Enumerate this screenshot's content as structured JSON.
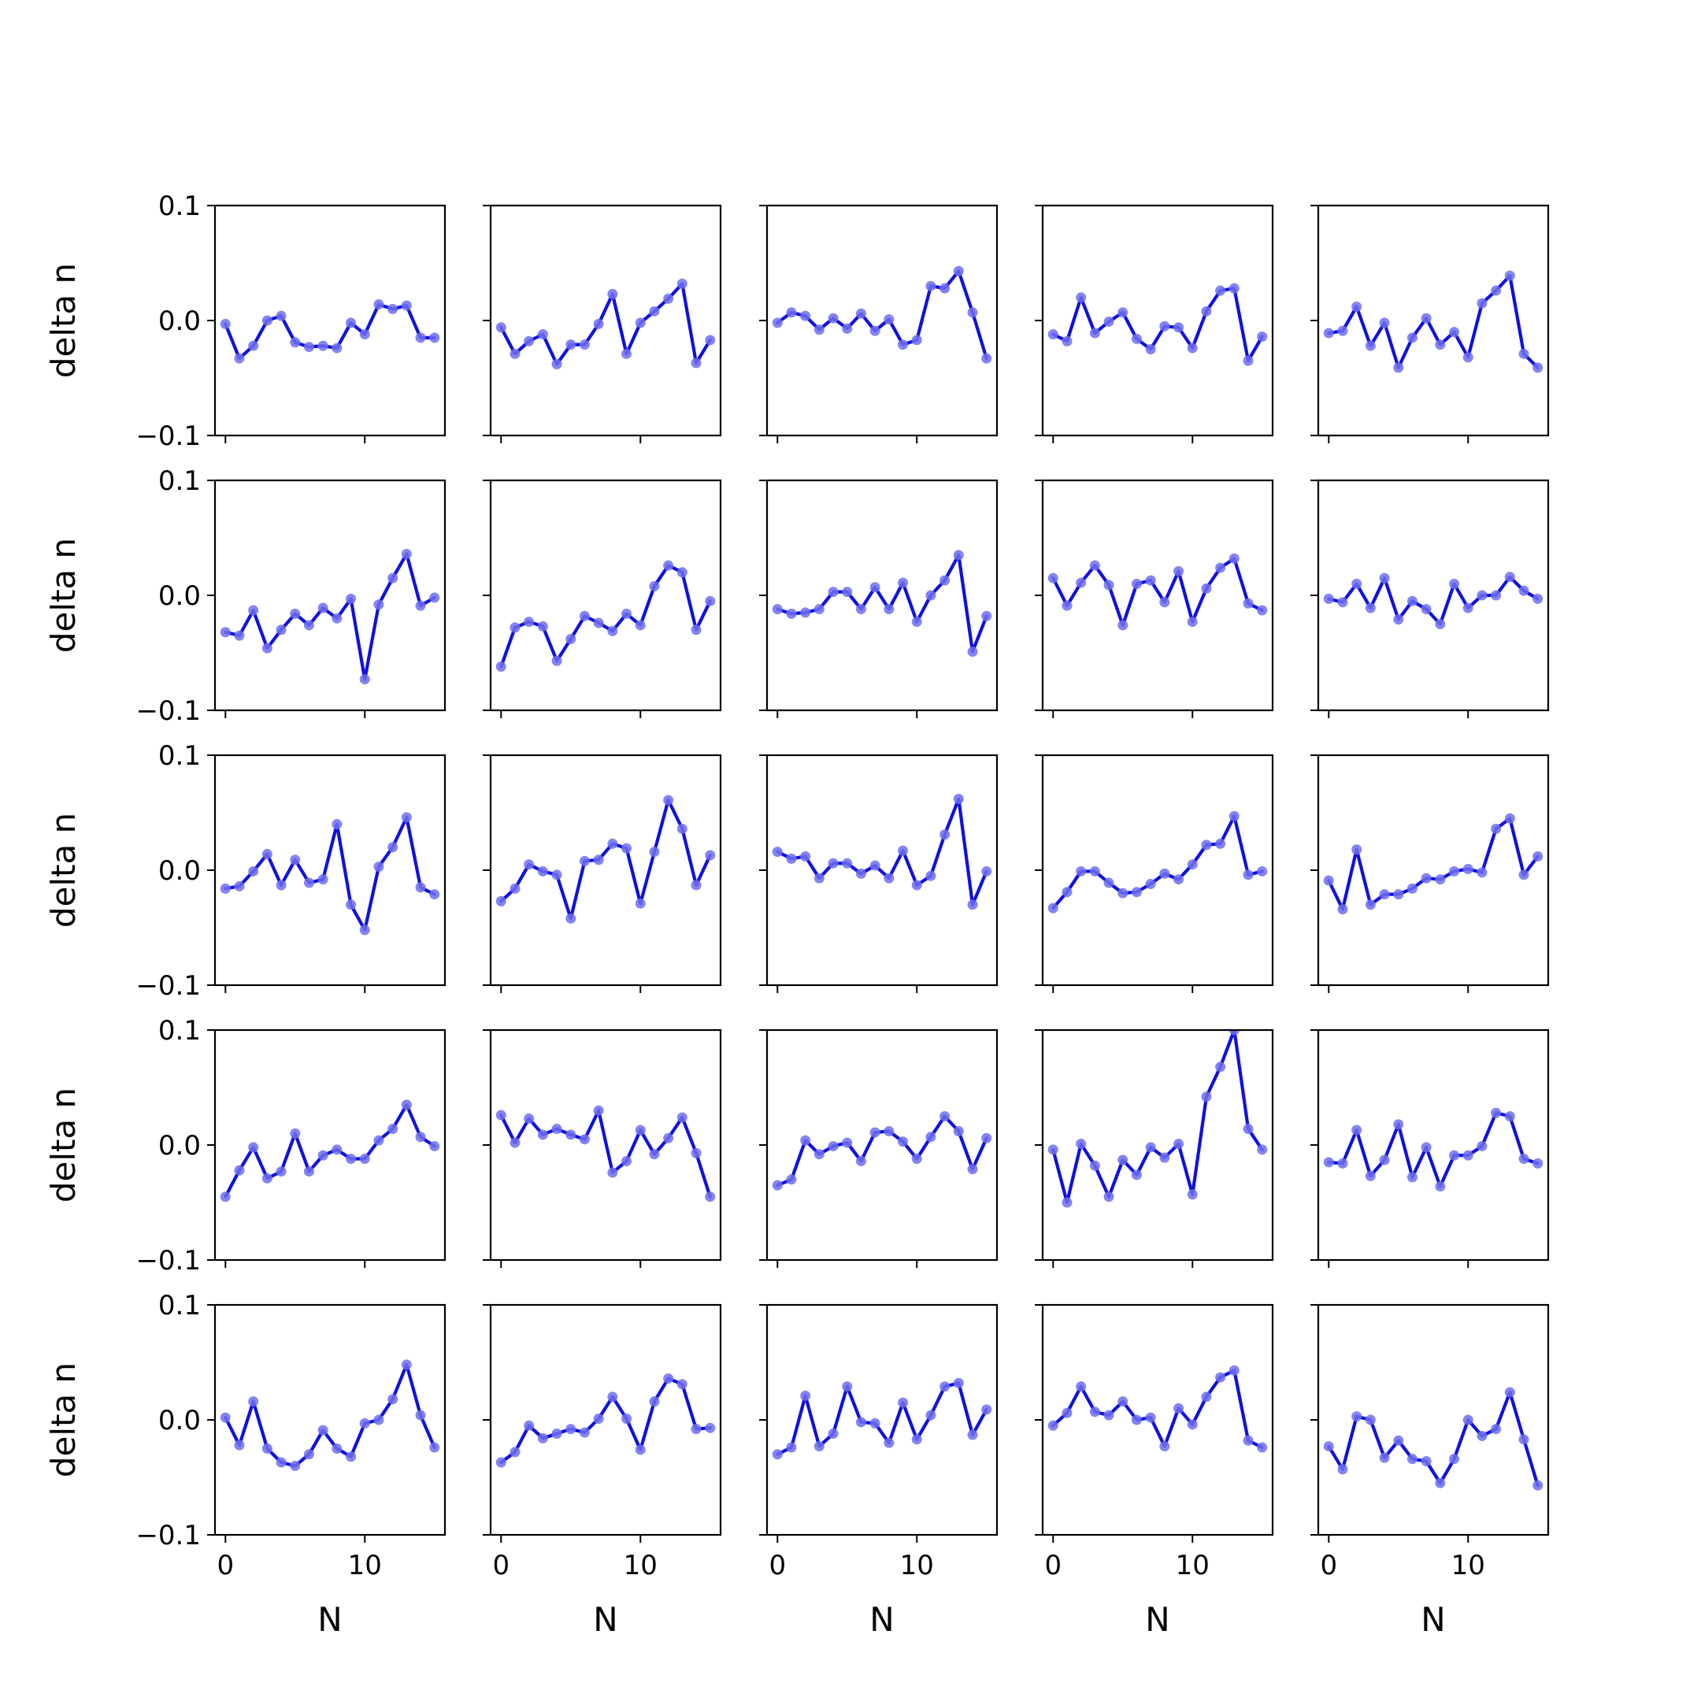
{
  "chart_data": {
    "type": "line",
    "layout": {
      "rows": 5,
      "cols": 5
    },
    "xlabel": "N",
    "ylabel": "delta n",
    "xlim": [
      -0.75,
      15.75
    ],
    "ylim": [
      -0.1,
      0.1
    ],
    "xticks": [
      0,
      10
    ],
    "xtick_labels": [
      "0",
      "10"
    ],
    "yticks": [
      0.1,
      0.0,
      -0.1
    ],
    "ytick_labels": [
      "0.1",
      "0.0",
      "−0.1"
    ],
    "x": [
      0,
      1,
      2,
      3,
      4,
      5,
      6,
      7,
      8,
      9,
      10,
      11,
      12,
      13,
      14,
      15
    ],
    "line_color": "#1010e0",
    "marker_color": "#6e6ef0",
    "grid": false,
    "legend": false,
    "panels": [
      [
        -0.003,
        -0.033,
        -0.022,
        0.0,
        0.004,
        -0.019,
        -0.023,
        -0.022,
        -0.024,
        -0.002,
        -0.012,
        0.014,
        0.01,
        0.013,
        -0.015,
        -0.015
      ],
      [
        -0.006,
        -0.029,
        -0.018,
        -0.012,
        -0.038,
        -0.021,
        -0.021,
        -0.003,
        0.023,
        -0.029,
        -0.002,
        0.008,
        0.019,
        0.032,
        -0.037,
        -0.017
      ],
      [
        -0.002,
        0.007,
        0.004,
        -0.008,
        0.002,
        -0.007,
        0.006,
        -0.009,
        0.001,
        -0.021,
        -0.017,
        0.03,
        0.028,
        0.043,
        0.007,
        -0.033
      ],
      [
        -0.012,
        -0.018,
        0.02,
        -0.011,
        -0.001,
        0.007,
        -0.016,
        -0.025,
        -0.005,
        -0.006,
        -0.024,
        0.008,
        0.026,
        0.028,
        -0.035,
        -0.014
      ],
      [
        -0.011,
        -0.009,
        0.012,
        -0.022,
        -0.002,
        -0.041,
        -0.015,
        0.002,
        -0.021,
        -0.01,
        -0.032,
        0.015,
        0.026,
        0.039,
        -0.029,
        -0.041
      ],
      [
        -0.032,
        -0.035,
        -0.013,
        -0.046,
        -0.03,
        -0.016,
        -0.026,
        -0.011,
        -0.02,
        -0.003,
        -0.073,
        -0.008,
        0.015,
        0.036,
        -0.009,
        -0.002
      ],
      [
        -0.062,
        -0.028,
        -0.023,
        -0.027,
        -0.057,
        -0.038,
        -0.018,
        -0.024,
        -0.031,
        -0.016,
        -0.026,
        0.008,
        0.026,
        0.02,
        -0.03,
        -0.005
      ],
      [
        -0.012,
        -0.016,
        -0.015,
        -0.012,
        0.003,
        0.003,
        -0.012,
        0.007,
        -0.012,
        0.011,
        -0.023,
        0.0,
        0.013,
        0.035,
        -0.049,
        -0.018
      ],
      [
        0.015,
        -0.009,
        0.011,
        0.026,
        0.009,
        -0.026,
        0.01,
        0.013,
        -0.006,
        0.021,
        -0.023,
        0.006,
        0.024,
        0.032,
        -0.007,
        -0.013
      ],
      [
        -0.003,
        -0.006,
        0.01,
        -0.011,
        0.015,
        -0.021,
        -0.005,
        -0.012,
        -0.025,
        0.01,
        -0.011,
        0.0,
        0.0,
        0.016,
        0.004,
        -0.003
      ]
    ],
    "panels_more": [
      [
        -0.016,
        -0.014,
        -0.001,
        0.014,
        -0.013,
        0.009,
        -0.011,
        -0.008,
        0.04,
        -0.03,
        -0.052,
        0.003,
        0.02,
        0.046,
        -0.015,
        -0.021
      ],
      [
        -0.027,
        -0.016,
        0.005,
        -0.001,
        -0.004,
        -0.042,
        0.008,
        0.009,
        0.023,
        0.019,
        -0.029,
        0.016,
        0.061,
        0.036,
        -0.013,
        0.013
      ],
      [
        0.016,
        0.01,
        0.012,
        -0.007,
        0.006,
        0.006,
        -0.003,
        0.004,
        -0.007,
        0.017,
        -0.013,
        -0.005,
        0.031,
        0.062,
        -0.03,
        -0.001
      ],
      [
        -0.033,
        -0.019,
        -0.001,
        -0.001,
        -0.011,
        -0.02,
        -0.019,
        -0.012,
        -0.003,
        -0.008,
        0.005,
        0.022,
        0.023,
        0.047,
        -0.004,
        -0.001
      ],
      [
        -0.009,
        -0.034,
        0.018,
        -0.03,
        -0.021,
        -0.021,
        -0.016,
        -0.007,
        -0.008,
        -0.001,
        0.001,
        -0.002,
        0.036,
        0.045,
        -0.004,
        0.012
      ],
      [
        -0.045,
        -0.022,
        -0.002,
        -0.029,
        -0.023,
        0.01,
        -0.023,
        -0.009,
        -0.004,
        -0.012,
        -0.012,
        0.004,
        0.014,
        0.035,
        0.007,
        -0.001
      ],
      [
        0.026,
        0.002,
        0.023,
        0.009,
        0.014,
        0.009,
        0.005,
        0.03,
        -0.024,
        -0.014,
        0.013,
        -0.008,
        0.006,
        0.024,
        -0.007,
        -0.045
      ],
      [
        -0.035,
        -0.03,
        0.004,
        -0.008,
        -0.001,
        0.002,
        -0.014,
        0.011,
        0.012,
        0.003,
        -0.012,
        0.007,
        0.025,
        0.012,
        -0.021,
        0.006
      ],
      [
        -0.004,
        -0.05,
        0.001,
        -0.018,
        -0.045,
        -0.013,
        -0.026,
        -0.002,
        -0.011,
        0.001,
        -0.043,
        0.042,
        0.068,
        0.1,
        0.014,
        -0.004
      ],
      [
        -0.015,
        -0.016,
        0.013,
        -0.027,
        -0.013,
        0.018,
        -0.028,
        -0.002,
        -0.036,
        -0.009,
        -0.009,
        -0.001,
        0.028,
        0.025,
        -0.012,
        -0.016
      ],
      [
        0.002,
        -0.022,
        0.016,
        -0.025,
        -0.037,
        -0.04,
        -0.03,
        -0.009,
        -0.025,
        -0.032,
        -0.003,
        0.0,
        0.018,
        0.048,
        0.004,
        -0.024
      ],
      [
        -0.037,
        -0.028,
        -0.005,
        -0.016,
        -0.012,
        -0.008,
        -0.011,
        0.001,
        0.02,
        0.001,
        -0.026,
        0.016,
        0.036,
        0.031,
        -0.008,
        -0.007
      ],
      [
        -0.03,
        -0.024,
        0.021,
        -0.023,
        -0.012,
        0.029,
        -0.002,
        -0.003,
        -0.02,
        0.015,
        -0.017,
        0.004,
        0.029,
        0.032,
        -0.013,
        0.009
      ],
      [
        -0.005,
        0.006,
        0.029,
        0.007,
        0.004,
        0.016,
        0.0,
        0.002,
        -0.023,
        0.01,
        -0.004,
        0.02,
        0.037,
        0.043,
        -0.018,
        -0.024
      ],
      [
        -0.023,
        -0.043,
        0.003,
        0.0,
        -0.033,
        -0.018,
        -0.034,
        -0.036,
        -0.055,
        -0.034,
        0.0,
        -0.014,
        -0.008,
        0.024,
        -0.017,
        -0.057
      ]
    ]
  }
}
